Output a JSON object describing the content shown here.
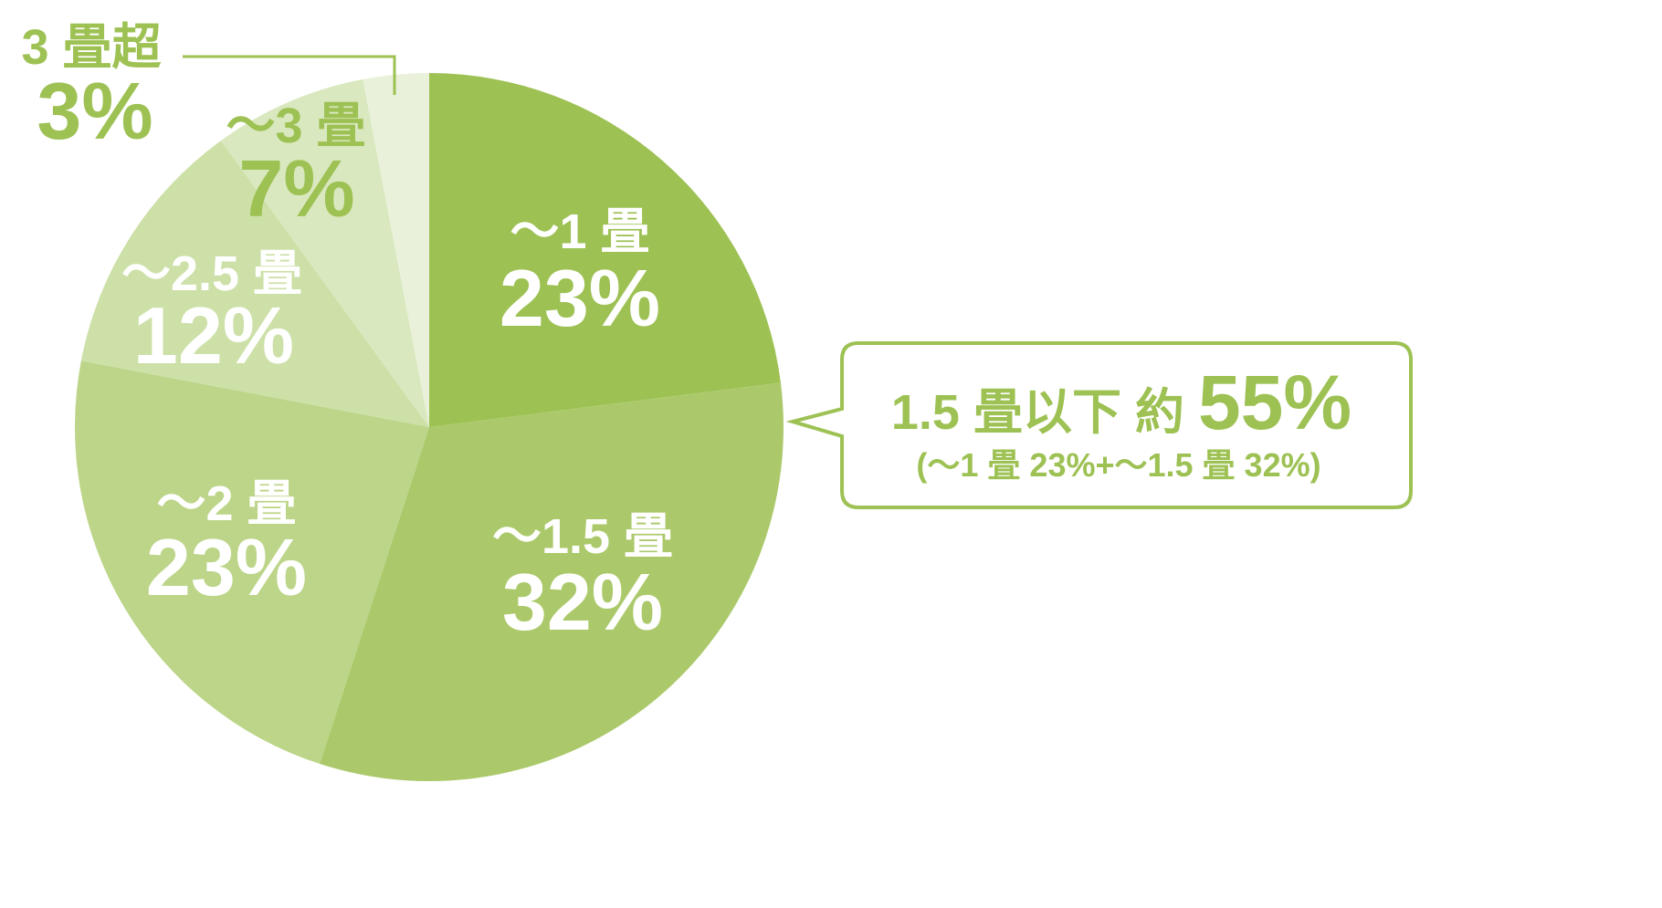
{
  "chart_data": {
    "type": "pie",
    "start": "top",
    "direction": "clockwise",
    "slices": [
      {
        "label": "～1 畳",
        "value": 23,
        "value_label": "23%",
        "color": "#9dc153",
        "text_color": "#ffffff"
      },
      {
        "label": "～1.5 畳",
        "value": 32,
        "value_label": "32%",
        "color": "#abc96a",
        "text_color": "#ffffff"
      },
      {
        "label": "～2 畳",
        "value": 23,
        "value_label": "23%",
        "color": "#bdd589",
        "text_color": "#ffffff"
      },
      {
        "label": "～2.5 畳",
        "value": 12,
        "value_label": "12%",
        "color": "#cde0a8",
        "text_color": "#ffffff"
      },
      {
        "label": "～3 畳",
        "value": 7,
        "value_label": "7%",
        "color": "#d9e8be",
        "text_color": "#9dc153"
      },
      {
        "label": "3 畳超",
        "value": 3,
        "value_label": "3%",
        "color": "#e9f1da",
        "text_color": "#9dc153"
      }
    ],
    "callout": {
      "main_prefix": "1.5 畳以下 約 ",
      "main_value": "55%",
      "sub": "(～1 畳 23%+～1.5 畳 32%)",
      "color": "#9dc153"
    }
  }
}
